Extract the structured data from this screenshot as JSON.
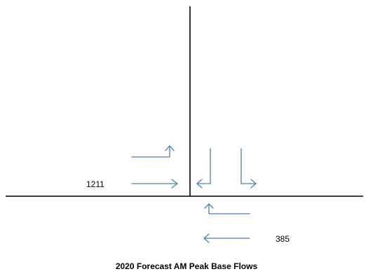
{
  "diagram": {
    "caption": "2020 Forecast AM Peak Base Flows",
    "flows": {
      "westbound_approach_volume": "1211",
      "eastbound_approach_volume": "385"
    },
    "colors": {
      "road": "#000000",
      "arrow": "#4a7ebb"
    }
  }
}
